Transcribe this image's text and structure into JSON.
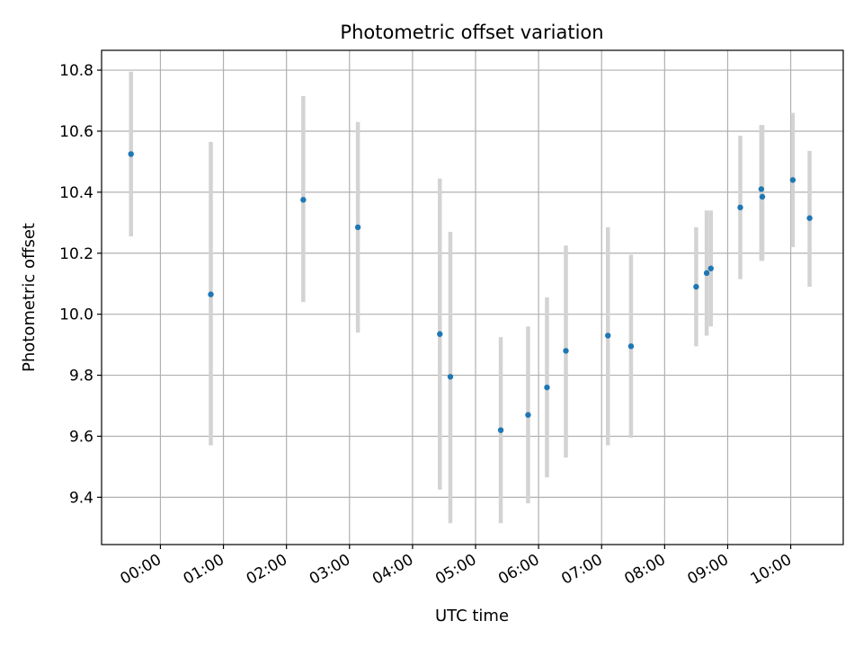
{
  "chart_data": {
    "type": "scatter",
    "title": "Photometric offset variation",
    "xlabel": "UTC time",
    "ylabel": "Photometric offset",
    "x_ticks": [
      "00:00",
      "01:00",
      "02:00",
      "03:00",
      "04:00",
      "05:00",
      "06:00",
      "07:00",
      "08:00",
      "09:00",
      "10:00"
    ],
    "y_ticks": [
      "9.4",
      "9.6",
      "9.8",
      "10.0",
      "10.2",
      "10.4",
      "10.6",
      "10.8"
    ],
    "xlim": [
      "23:04",
      "10:50"
    ],
    "ylim": [
      9.245,
      10.865
    ],
    "grid": true,
    "colors": {
      "marker": "#1f77b4",
      "errorbar": "#d3d3d3",
      "grid": "#b0b0b0"
    },
    "series": [
      {
        "x": [
          "23:32",
          "00:48",
          "02:16",
          "03:08",
          "04:26",
          "04:36",
          "05:24",
          "05:50",
          "06:08",
          "06:26",
          "07:06",
          "07:28",
          "08:30",
          "08:40",
          "08:44",
          "09:12",
          "09:32",
          "09:33",
          "10:02",
          "10:18"
        ],
        "y": [
          10.525,
          10.065,
          10.375,
          10.285,
          9.935,
          9.795,
          9.62,
          9.67,
          9.76,
          9.88,
          9.93,
          9.895,
          10.09,
          10.135,
          10.15,
          10.35,
          10.41,
          10.385,
          10.44,
          10.315
        ],
        "err_low": [
          10.255,
          9.57,
          10.04,
          9.94,
          9.425,
          9.315,
          9.315,
          9.38,
          9.465,
          9.53,
          9.57,
          9.595,
          9.895,
          9.93,
          9.96,
          10.115,
          10.175,
          10.175,
          10.22,
          10.09
        ],
        "err_high": [
          10.795,
          10.565,
          10.715,
          10.63,
          10.445,
          10.27,
          9.925,
          9.96,
          10.055,
          10.225,
          10.285,
          10.195,
          10.285,
          10.34,
          10.34,
          10.585,
          10.62,
          10.62,
          10.66,
          10.535
        ]
      }
    ]
  }
}
